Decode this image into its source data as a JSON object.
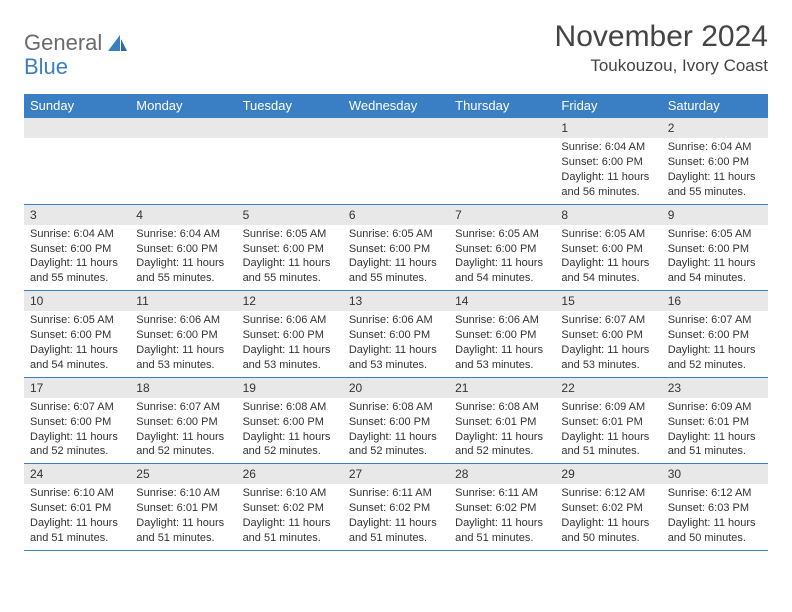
{
  "brand": {
    "part1": "General",
    "part2": "Blue"
  },
  "title": "November 2024",
  "location": "Toukouzou, Ivory Coast",
  "colors": {
    "header_bg": "#3a7fc4",
    "header_text": "#ffffff",
    "daynum_bg": "#e8e8e8",
    "cell_border": "#3a7fc4",
    "body_text": "#333333",
    "page_bg": "#ffffff",
    "brand_gray": "#6b6b6b",
    "brand_blue": "#3a7fc4"
  },
  "weekdays": [
    "Sunday",
    "Monday",
    "Tuesday",
    "Wednesday",
    "Thursday",
    "Friday",
    "Saturday"
  ],
  "weeks": [
    [
      null,
      null,
      null,
      null,
      null,
      {
        "n": "1",
        "sunrise": "Sunrise: 6:04 AM",
        "sunset": "Sunset: 6:00 PM",
        "daylight": "Daylight: 11 hours and 56 minutes."
      },
      {
        "n": "2",
        "sunrise": "Sunrise: 6:04 AM",
        "sunset": "Sunset: 6:00 PM",
        "daylight": "Daylight: 11 hours and 55 minutes."
      }
    ],
    [
      {
        "n": "3",
        "sunrise": "Sunrise: 6:04 AM",
        "sunset": "Sunset: 6:00 PM",
        "daylight": "Daylight: 11 hours and 55 minutes."
      },
      {
        "n": "4",
        "sunrise": "Sunrise: 6:04 AM",
        "sunset": "Sunset: 6:00 PM",
        "daylight": "Daylight: 11 hours and 55 minutes."
      },
      {
        "n": "5",
        "sunrise": "Sunrise: 6:05 AM",
        "sunset": "Sunset: 6:00 PM",
        "daylight": "Daylight: 11 hours and 55 minutes."
      },
      {
        "n": "6",
        "sunrise": "Sunrise: 6:05 AM",
        "sunset": "Sunset: 6:00 PM",
        "daylight": "Daylight: 11 hours and 55 minutes."
      },
      {
        "n": "7",
        "sunrise": "Sunrise: 6:05 AM",
        "sunset": "Sunset: 6:00 PM",
        "daylight": "Daylight: 11 hours and 54 minutes."
      },
      {
        "n": "8",
        "sunrise": "Sunrise: 6:05 AM",
        "sunset": "Sunset: 6:00 PM",
        "daylight": "Daylight: 11 hours and 54 minutes."
      },
      {
        "n": "9",
        "sunrise": "Sunrise: 6:05 AM",
        "sunset": "Sunset: 6:00 PM",
        "daylight": "Daylight: 11 hours and 54 minutes."
      }
    ],
    [
      {
        "n": "10",
        "sunrise": "Sunrise: 6:05 AM",
        "sunset": "Sunset: 6:00 PM",
        "daylight": "Daylight: 11 hours and 54 minutes."
      },
      {
        "n": "11",
        "sunrise": "Sunrise: 6:06 AM",
        "sunset": "Sunset: 6:00 PM",
        "daylight": "Daylight: 11 hours and 53 minutes."
      },
      {
        "n": "12",
        "sunrise": "Sunrise: 6:06 AM",
        "sunset": "Sunset: 6:00 PM",
        "daylight": "Daylight: 11 hours and 53 minutes."
      },
      {
        "n": "13",
        "sunrise": "Sunrise: 6:06 AM",
        "sunset": "Sunset: 6:00 PM",
        "daylight": "Daylight: 11 hours and 53 minutes."
      },
      {
        "n": "14",
        "sunrise": "Sunrise: 6:06 AM",
        "sunset": "Sunset: 6:00 PM",
        "daylight": "Daylight: 11 hours and 53 minutes."
      },
      {
        "n": "15",
        "sunrise": "Sunrise: 6:07 AM",
        "sunset": "Sunset: 6:00 PM",
        "daylight": "Daylight: 11 hours and 53 minutes."
      },
      {
        "n": "16",
        "sunrise": "Sunrise: 6:07 AM",
        "sunset": "Sunset: 6:00 PM",
        "daylight": "Daylight: 11 hours and 52 minutes."
      }
    ],
    [
      {
        "n": "17",
        "sunrise": "Sunrise: 6:07 AM",
        "sunset": "Sunset: 6:00 PM",
        "daylight": "Daylight: 11 hours and 52 minutes."
      },
      {
        "n": "18",
        "sunrise": "Sunrise: 6:07 AM",
        "sunset": "Sunset: 6:00 PM",
        "daylight": "Daylight: 11 hours and 52 minutes."
      },
      {
        "n": "19",
        "sunrise": "Sunrise: 6:08 AM",
        "sunset": "Sunset: 6:00 PM",
        "daylight": "Daylight: 11 hours and 52 minutes."
      },
      {
        "n": "20",
        "sunrise": "Sunrise: 6:08 AM",
        "sunset": "Sunset: 6:00 PM",
        "daylight": "Daylight: 11 hours and 52 minutes."
      },
      {
        "n": "21",
        "sunrise": "Sunrise: 6:08 AM",
        "sunset": "Sunset: 6:01 PM",
        "daylight": "Daylight: 11 hours and 52 minutes."
      },
      {
        "n": "22",
        "sunrise": "Sunrise: 6:09 AM",
        "sunset": "Sunset: 6:01 PM",
        "daylight": "Daylight: 11 hours and 51 minutes."
      },
      {
        "n": "23",
        "sunrise": "Sunrise: 6:09 AM",
        "sunset": "Sunset: 6:01 PM",
        "daylight": "Daylight: 11 hours and 51 minutes."
      }
    ],
    [
      {
        "n": "24",
        "sunrise": "Sunrise: 6:10 AM",
        "sunset": "Sunset: 6:01 PM",
        "daylight": "Daylight: 11 hours and 51 minutes."
      },
      {
        "n": "25",
        "sunrise": "Sunrise: 6:10 AM",
        "sunset": "Sunset: 6:01 PM",
        "daylight": "Daylight: 11 hours and 51 minutes."
      },
      {
        "n": "26",
        "sunrise": "Sunrise: 6:10 AM",
        "sunset": "Sunset: 6:02 PM",
        "daylight": "Daylight: 11 hours and 51 minutes."
      },
      {
        "n": "27",
        "sunrise": "Sunrise: 6:11 AM",
        "sunset": "Sunset: 6:02 PM",
        "daylight": "Daylight: 11 hours and 51 minutes."
      },
      {
        "n": "28",
        "sunrise": "Sunrise: 6:11 AM",
        "sunset": "Sunset: 6:02 PM",
        "daylight": "Daylight: 11 hours and 51 minutes."
      },
      {
        "n": "29",
        "sunrise": "Sunrise: 6:12 AM",
        "sunset": "Sunset: 6:02 PM",
        "daylight": "Daylight: 11 hours and 50 minutes."
      },
      {
        "n": "30",
        "sunrise": "Sunrise: 6:12 AM",
        "sunset": "Sunset: 6:03 PM",
        "daylight": "Daylight: 11 hours and 50 minutes."
      }
    ]
  ]
}
